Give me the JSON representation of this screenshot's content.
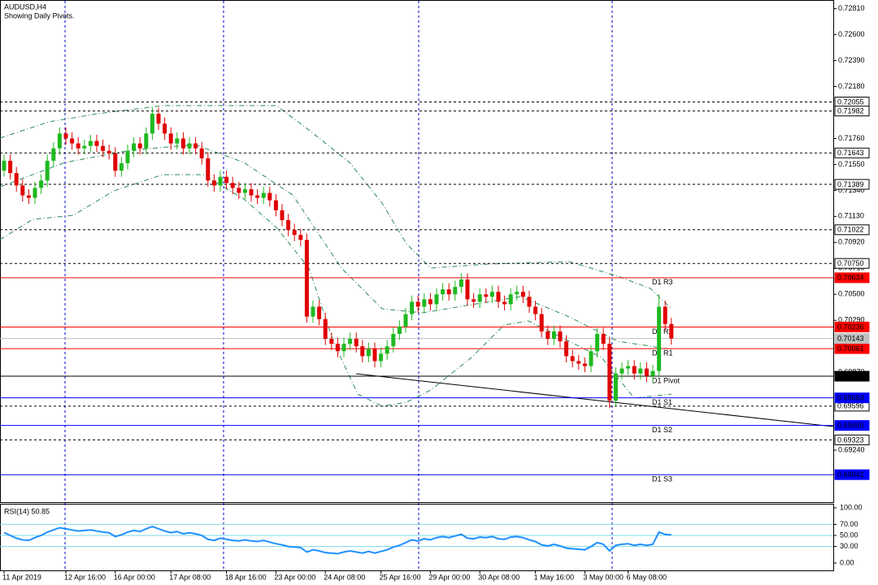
{
  "chart_data": {
    "type": "candlestick",
    "title": "AUDUSD,H4",
    "subtitle": "Showing Daily Pivots.",
    "categories": [
      "11 Apr 2019",
      null,
      null,
      null,
      null,
      null,
      null,
      null,
      null,
      null,
      "12 Apr 16:00",
      null,
      null,
      null,
      null,
      null,
      null,
      null,
      "16 Apr 00:00",
      null,
      null,
      null,
      null,
      null,
      null,
      null,
      null,
      "17 Apr 08:00",
      null,
      null,
      null,
      null,
      null,
      null,
      null,
      null,
      "18 Apr 16:00",
      null,
      null,
      null,
      null,
      null,
      null,
      null,
      "23 Apr 00:00",
      null,
      null,
      null,
      null,
      null,
      null,
      null,
      "24 Apr 08:00",
      null,
      null,
      null,
      null,
      null,
      null,
      null,
      null,
      "25 Apr 16:00",
      null,
      null,
      null,
      null,
      null,
      null,
      null,
      "29 Apr 00:00",
      null,
      null,
      null,
      null,
      null,
      null,
      null,
      "30 Apr 08:00",
      null,
      null,
      null,
      null,
      null,
      null,
      null,
      null,
      "1 May 16:00",
      null,
      null,
      null,
      null,
      null,
      null,
      null,
      "3 May 00:00",
      null,
      null,
      null,
      null,
      null,
      null,
      "6 May 08:00",
      null,
      null,
      null,
      null,
      null,
      null,
      null
    ],
    "open": [
      0.715,
      0.7158,
      0.7148,
      0.7138,
      0.713,
      0.7128,
      0.7136,
      0.7142,
      0.7158,
      0.7168,
      0.718,
      0.7176,
      0.7172,
      0.7168,
      0.717,
      0.7174,
      0.717,
      0.7166,
      0.7164,
      0.715,
      0.7156,
      0.7166,
      0.7172,
      0.7168,
      0.718,
      0.7196,
      0.7188,
      0.718,
      0.7172,
      0.7176,
      0.7168,
      0.7172,
      0.7168,
      0.716,
      0.7142,
      0.7138,
      0.7145,
      0.714,
      0.7136,
      0.7132,
      0.7135,
      0.713,
      0.7128,
      0.7132,
      0.7126,
      0.7118,
      0.711,
      0.7102,
      0.7098,
      0.7094,
      0.7032,
      0.704,
      0.703,
      0.7014,
      0.701,
      0.7004,
      0.701,
      0.7014,
      0.7008,
      0.7,
      0.7006,
      0.6996,
      0.7002,
      0.7008,
      0.7018,
      0.7024,
      0.7034,
      0.7044,
      0.704,
      0.7046,
      0.7042,
      0.705,
      0.7054,
      0.705,
      0.7056,
      0.7062,
      0.7046,
      0.7044,
      0.705,
      0.7048,
      0.7052,
      0.7044,
      0.7042,
      0.705,
      0.7052,
      0.7048,
      0.704,
      0.7034,
      0.702,
      0.7014,
      0.702,
      0.7012,
      0.7,
      0.6996,
      0.6994,
      0.6992,
      0.7004,
      0.7018,
      0.701,
      0.6964,
      0.6986,
      0.699,
      0.6992,
      0.6986,
      0.699,
      0.6984,
      0.6988,
      0.704,
      0.7026
    ],
    "high": [
      0.7163,
      0.7163,
      0.7153,
      0.7143,
      0.7135,
      0.7141,
      0.7147,
      0.7163,
      0.7173,
      0.7185,
      0.7185,
      0.7181,
      0.7177,
      0.7175,
      0.7179,
      0.7179,
      0.7175,
      0.7171,
      0.7169,
      0.7161,
      0.7171,
      0.7177,
      0.7177,
      0.7185,
      0.7201,
      0.7201,
      0.7193,
      0.7185,
      0.7181,
      0.7181,
      0.7177,
      0.7177,
      0.7173,
      0.7165,
      0.7147,
      0.715,
      0.715,
      0.7145,
      0.7141,
      0.714,
      0.714,
      0.7135,
      0.7137,
      0.7137,
      0.7131,
      0.7123,
      0.7115,
      0.7107,
      0.7103,
      0.7099,
      0.7045,
      0.7045,
      0.7035,
      0.7019,
      0.7015,
      0.7015,
      0.7019,
      0.7019,
      0.7013,
      0.7011,
      0.7011,
      0.7007,
      0.7013,
      0.7023,
      0.7029,
      0.7039,
      0.7049,
      0.7049,
      0.7051,
      0.7051,
      0.7055,
      0.7059,
      0.7059,
      0.7061,
      0.7067,
      0.7067,
      0.7051,
      0.7055,
      0.7055,
      0.7057,
      0.7057,
      0.7049,
      0.7055,
      0.7057,
      0.7057,
      0.7053,
      0.7045,
      0.7039,
      0.7025,
      0.7025,
      0.7025,
      0.7017,
      0.7005,
      0.7001,
      0.6999,
      0.7009,
      0.7023,
      0.7023,
      0.7015,
      0.6991,
      0.6995,
      0.6997,
      0.6997,
      0.6995,
      0.6995,
      0.6993,
      0.705,
      0.7045,
      0.7031
    ],
    "low": [
      0.7145,
      0.7143,
      0.7133,
      0.7125,
      0.7123,
      0.7123,
      0.7131,
      0.7137,
      0.7153,
      0.7163,
      0.7171,
      0.7167,
      0.7163,
      0.7163,
      0.7165,
      0.7165,
      0.7161,
      0.7159,
      0.7145,
      0.7145,
      0.7151,
      0.7161,
      0.7163,
      0.7163,
      0.7175,
      0.7183,
      0.7175,
      0.7167,
      0.7167,
      0.7163,
      0.7163,
      0.7163,
      0.7155,
      0.7137,
      0.7133,
      0.7133,
      0.7135,
      0.7131,
      0.7127,
      0.7127,
      0.7125,
      0.7123,
      0.7123,
      0.7121,
      0.7113,
      0.7105,
      0.7097,
      0.7093,
      0.7089,
      0.7027,
      0.7027,
      0.7025,
      0.7009,
      0.7005,
      0.6999,
      0.6999,
      0.7005,
      0.7003,
      0.6995,
      0.6995,
      0.6991,
      0.6991,
      0.6997,
      0.7003,
      0.7013,
      0.7019,
      0.7029,
      0.7035,
      0.7035,
      0.7037,
      0.7037,
      0.7045,
      0.7045,
      0.7045,
      0.7051,
      0.7041,
      0.7039,
      0.7039,
      0.7043,
      0.7043,
      0.7039,
      0.7037,
      0.7037,
      0.7045,
      0.7043,
      0.7035,
      0.7029,
      0.7015,
      0.7009,
      0.7009,
      0.7007,
      0.6995,
      0.6991,
      0.6989,
      0.6987,
      0.6987,
      0.6999,
      0.7005,
      0.6958,
      0.6959,
      0.6981,
      0.6985,
      0.6981,
      0.6981,
      0.6979,
      0.6979,
      0.6983,
      0.7021,
      0.70093
    ],
    "close": [
      0.7158,
      0.7148,
      0.7138,
      0.713,
      0.7128,
      0.7136,
      0.7142,
      0.7158,
      0.7168,
      0.718,
      0.7176,
      0.7172,
      0.7168,
      0.717,
      0.7174,
      0.717,
      0.7166,
      0.7164,
      0.715,
      0.7156,
      0.7166,
      0.7172,
      0.7168,
      0.718,
      0.7196,
      0.7188,
      0.718,
      0.7172,
      0.7176,
      0.7168,
      0.7172,
      0.7168,
      0.716,
      0.7142,
      0.7138,
      0.7145,
      0.714,
      0.7136,
      0.7132,
      0.7135,
      0.713,
      0.7128,
      0.7132,
      0.7126,
      0.7118,
      0.711,
      0.7102,
      0.7098,
      0.7094,
      0.7032,
      0.704,
      0.703,
      0.7014,
      0.701,
      0.7004,
      0.701,
      0.7014,
      0.7008,
      0.7,
      0.7006,
      0.6996,
      0.7002,
      0.7008,
      0.7018,
      0.7024,
      0.7034,
      0.7044,
      0.704,
      0.7046,
      0.7042,
      0.705,
      0.7054,
      0.705,
      0.7056,
      0.7062,
      0.7046,
      0.7044,
      0.705,
      0.7048,
      0.7052,
      0.7044,
      0.7042,
      0.705,
      0.7052,
      0.7048,
      0.704,
      0.7034,
      0.702,
      0.7014,
      0.702,
      0.7012,
      0.7,
      0.6996,
      0.6994,
      0.6992,
      0.7004,
      0.7018,
      0.701,
      0.6964,
      0.6986,
      0.699,
      0.6992,
      0.6986,
      0.699,
      0.6984,
      0.6988,
      0.704,
      0.7026,
      0.70143
    ],
    "up_color": "#1fb91f",
    "down_color": "#e00000",
    "ylim": [
      0.6882,
      0.7286
    ],
    "yticks": [
      {
        "value": 0.7281,
        "label": "0.72810"
      },
      {
        "value": 0.726,
        "label": "0.72600"
      },
      {
        "value": 0.7239,
        "label": "0.72390"
      },
      {
        "value": 0.7218,
        "label": "0.72180"
      },
      {
        "value": 0.7176,
        "label": "0.71760"
      },
      {
        "value": 0.7155,
        "label": "0.71550"
      },
      {
        "value": 0.7134,
        "label": "0.71340"
      },
      {
        "value": 0.7113,
        "label": "0.71130"
      },
      {
        "value": 0.7092,
        "label": "0.70920"
      },
      {
        "value": 0.7071,
        "label": "0.70710"
      },
      {
        "value": 0.705,
        "label": "0.70500"
      },
      {
        "value": 0.7029,
        "label": "0.70290"
      },
      {
        "value": 0.6987,
        "label": "0.69870"
      },
      {
        "value": 0.6924,
        "label": "0.69240"
      }
    ],
    "dashed_levels": [
      0.72055,
      0.71982,
      0.71643,
      0.71389,
      0.71022,
      {
        "value": 0.7075,
        "label": "0.70750"
      },
      0.69596,
      0.69323
    ],
    "pivots": [
      {
        "name": "D1 R3",
        "value": 0.70634,
        "color": "#ff0000"
      },
      {
        "name": "D1 R2",
        "value": 0.70236,
        "color": "#ff0000"
      },
      {
        "name": "D1 R1",
        "value": 0.70061,
        "color": "#ff0000"
      },
      {
        "name": "D1 Pivot",
        "value": 0.69838,
        "color": "#000000"
      },
      {
        "name": "D1 S1",
        "value": 0.69663,
        "color": "#0000ff"
      },
      {
        "name": "D1 S2",
        "value": 0.6944,
        "label": "0.69440",
        "color": "#0000ff"
      },
      {
        "name": "D1 S3",
        "value": 0.69042,
        "color": "#0000ff"
      }
    ],
    "rsi": {
      "label": "RSI(14) 50.85",
      "color": "#1e90ff",
      "ylim": [
        0,
        100
      ],
      "yticks": [
        {
          "value": 100,
          "label": "100.00"
        },
        {
          "value": 70,
          "label": "70.00"
        },
        {
          "value": 50,
          "label": "50.00"
        },
        {
          "value": 30,
          "label": "30.00"
        },
        {
          "value": 0,
          "label": "0.00"
        }
      ],
      "values": [
        55,
        50,
        45,
        42,
        41,
        46,
        50,
        56,
        60,
        64,
        62,
        60,
        58,
        59,
        60,
        58,
        56,
        55,
        48,
        51,
        56,
        59,
        57,
        62,
        66,
        62,
        58,
        55,
        57,
        53,
        55,
        53,
        50,
        43,
        41,
        45,
        43,
        41,
        40,
        42,
        40,
        39,
        41,
        38,
        35,
        33,
        30,
        29,
        28,
        20,
        24,
        22,
        19,
        18,
        17,
        20,
        22,
        20,
        18,
        21,
        18,
        21,
        24,
        29,
        32,
        37,
        42,
        40,
        44,
        42,
        46,
        48,
        46,
        49,
        52,
        45,
        44,
        47,
        46,
        48,
        44,
        43,
        47,
        48,
        46,
        42,
        39,
        33,
        31,
        34,
        31,
        27,
        26,
        25,
        24,
        30,
        37,
        34,
        22,
        32,
        34,
        35,
        32,
        34,
        32,
        34,
        56,
        52,
        50.85
      ]
    }
  }
}
